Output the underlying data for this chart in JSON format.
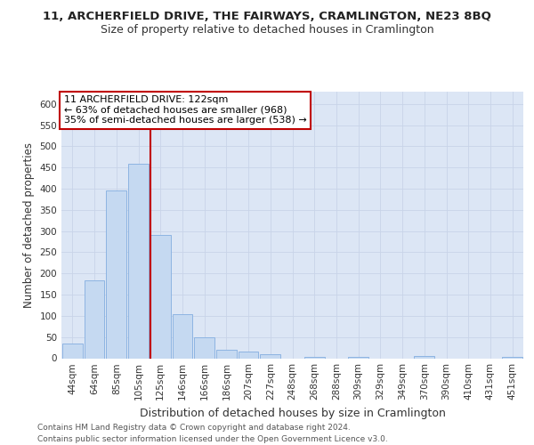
{
  "title1": "11, ARCHERFIELD DRIVE, THE FAIRWAYS, CRAMLINGTON, NE23 8BQ",
  "title2": "Size of property relative to detached houses in Cramlington",
  "xlabel": "Distribution of detached houses by size in Cramlington",
  "ylabel": "Number of detached properties",
  "bar_labels": [
    "44sqm",
    "64sqm",
    "85sqm",
    "105sqm",
    "125sqm",
    "146sqm",
    "166sqm",
    "186sqm",
    "207sqm",
    "227sqm",
    "248sqm",
    "268sqm",
    "288sqm",
    "309sqm",
    "329sqm",
    "349sqm",
    "370sqm",
    "390sqm",
    "410sqm",
    "431sqm",
    "451sqm"
  ],
  "bar_values": [
    35,
    183,
    395,
    458,
    290,
    105,
    49,
    21,
    15,
    9,
    0,
    4,
    0,
    4,
    0,
    0,
    5,
    0,
    0,
    0,
    4
  ],
  "bar_color": "#c5d9f1",
  "bar_edgecolor": "#8db4e2",
  "vline_color": "#c00000",
  "annotation_text": "11 ARCHERFIELD DRIVE: 122sqm\n← 63% of detached houses are smaller (968)\n35% of semi-detached houses are larger (538) →",
  "annotation_box_facecolor": "#ffffff",
  "annotation_box_edgecolor": "#c00000",
  "ylim": [
    0,
    630
  ],
  "yticks": [
    0,
    50,
    100,
    150,
    200,
    250,
    300,
    350,
    400,
    450,
    500,
    550,
    600
  ],
  "grid_color": "#c8d4e8",
  "background_color": "#dce6f5",
  "footnote1": "Contains HM Land Registry data © Crown copyright and database right 2024.",
  "footnote2": "Contains public sector information licensed under the Open Government Licence v3.0.",
  "title1_fontsize": 9.5,
  "title2_fontsize": 9,
  "tick_fontsize": 7.5,
  "ylabel_fontsize": 8.5,
  "xlabel_fontsize": 9,
  "annotation_fontsize": 8,
  "footnote_fontsize": 6.5
}
